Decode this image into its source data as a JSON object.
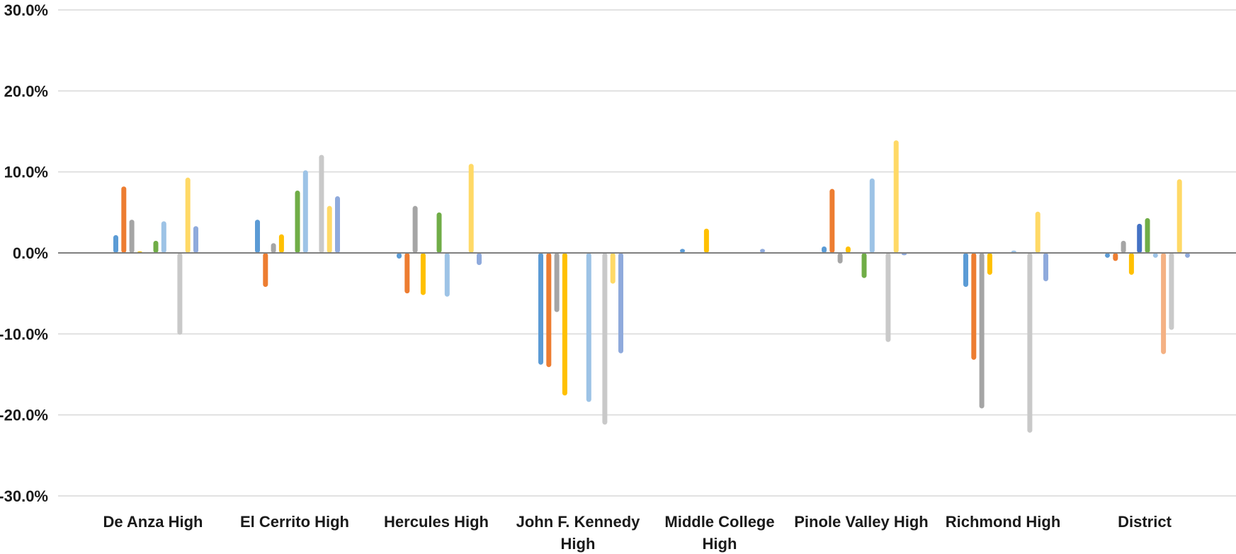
{
  "chart_data": {
    "type": "bar",
    "title": "",
    "xlabel": "",
    "ylabel": "",
    "ylim": [
      -0.3,
      0.3
    ],
    "y_ticks": [
      "30.0%",
      "20.0%",
      "10.0%",
      "0.0%",
      "-10.0%",
      "-20.0%",
      "-30.0%"
    ],
    "y_tick_values": [
      0.3,
      0.2,
      0.1,
      0.0,
      -0.1,
      -0.2,
      -0.3
    ],
    "grid": true,
    "legend": "none",
    "categories": [
      [
        "De Anza High"
      ],
      [
        "El Cerrito High"
      ],
      [
        "Hercules High"
      ],
      [
        "John F. Kennedy",
        "High"
      ],
      [
        "Middle College",
        "High"
      ],
      [
        "Pinole Valley High"
      ],
      [
        "Richmond High"
      ],
      [
        "District"
      ]
    ],
    "series_colors": [
      "#5B9BD5",
      "#ED7D31",
      "#A5A5A5",
      "#FFC000",
      "#4472C4",
      "#70AD47",
      "#9DC3E6",
      "#F4B183",
      "#C9C9C9",
      "#FFD966",
      "#8FAADC"
    ],
    "series": [
      {
        "values": [
          0.022,
          0.041,
          -0.007,
          -0.138,
          0.005,
          0.008,
          -0.042,
          -0.006
        ]
      },
      {
        "values": [
          0.082,
          -0.042,
          -0.05,
          -0.141,
          0.0,
          0.079,
          -0.132,
          -0.01
        ]
      },
      {
        "values": [
          0.041,
          0.012,
          0.058,
          -0.073,
          0.0,
          -0.013,
          -0.192,
          0.015
        ]
      },
      {
        "values": [
          0.002,
          0.023,
          -0.052,
          -0.176,
          0.03,
          0.008,
          -0.027,
          -0.027
        ]
      },
      {
        "values": [
          0.0,
          0.0,
          0.0,
          0.0,
          0.0,
          0.0,
          0.0,
          0.036
        ]
      },
      {
        "values": [
          0.015,
          0.077,
          0.05,
          0.0,
          0.0,
          -0.031,
          0.0,
          0.043
        ]
      },
      {
        "values": [
          0.039,
          0.102,
          -0.054,
          -0.184,
          0.0,
          0.092,
          0.003,
          -0.006
        ]
      },
      {
        "values": [
          0.0,
          0.0,
          0.0,
          0.0,
          0.0,
          0.0,
          0.0,
          -0.125
        ]
      },
      {
        "values": [
          -0.101,
          0.121,
          0.0,
          -0.212,
          0.0,
          -0.11,
          -0.222,
          -0.095
        ]
      },
      {
        "values": [
          0.093,
          0.058,
          0.11,
          -0.038,
          0.0,
          0.139,
          0.051,
          0.091
        ]
      },
      {
        "values": [
          0.033,
          0.07,
          -0.015,
          -0.124,
          0.005,
          -0.003,
          -0.035,
          -0.006
        ]
      }
    ]
  }
}
